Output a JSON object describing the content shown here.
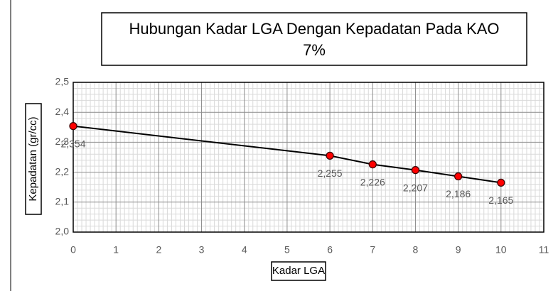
{
  "chart_data": {
    "type": "line",
    "title": "Hubungan Kadar LGA Dengan Kepadatan Pada KAO 7%",
    "title_lines": [
      "Hubungan Kadar LGA Dengan Kepadatan Pada KAO",
      "7%"
    ],
    "x_label": "Kadar LGA",
    "y_label": "Kepadatan (gr/cc)",
    "series": [
      {
        "name": "Kepadatan",
        "color": "#ff0000",
        "x": [
          0,
          6,
          7,
          8,
          9,
          10
        ],
        "values": [
          2.354,
          2.255,
          2.226,
          2.207,
          2.186,
          2.165
        ],
        "value_labels": [
          "2,354",
          "2,255",
          "2,226",
          "2,207",
          "2,186",
          "2,165"
        ]
      }
    ],
    "xlim": [
      0,
      11
    ],
    "xticks": [
      0,
      1,
      2,
      3,
      4,
      5,
      6,
      7,
      8,
      9,
      10,
      11
    ],
    "ylim": [
      2.0,
      2.5
    ],
    "yticks": [
      {
        "value": 2.0,
        "label": "2,0"
      },
      {
        "value": 2.1,
        "label": "2,1"
      },
      {
        "value": 2.2,
        "label": "2,2"
      },
      {
        "value": 2.3,
        "label": "2,3"
      },
      {
        "value": 2.4,
        "label": "2,4"
      },
      {
        "value": 2.5,
        "label": "2,5"
      }
    ],
    "grid": true,
    "minor_grid": true
  }
}
